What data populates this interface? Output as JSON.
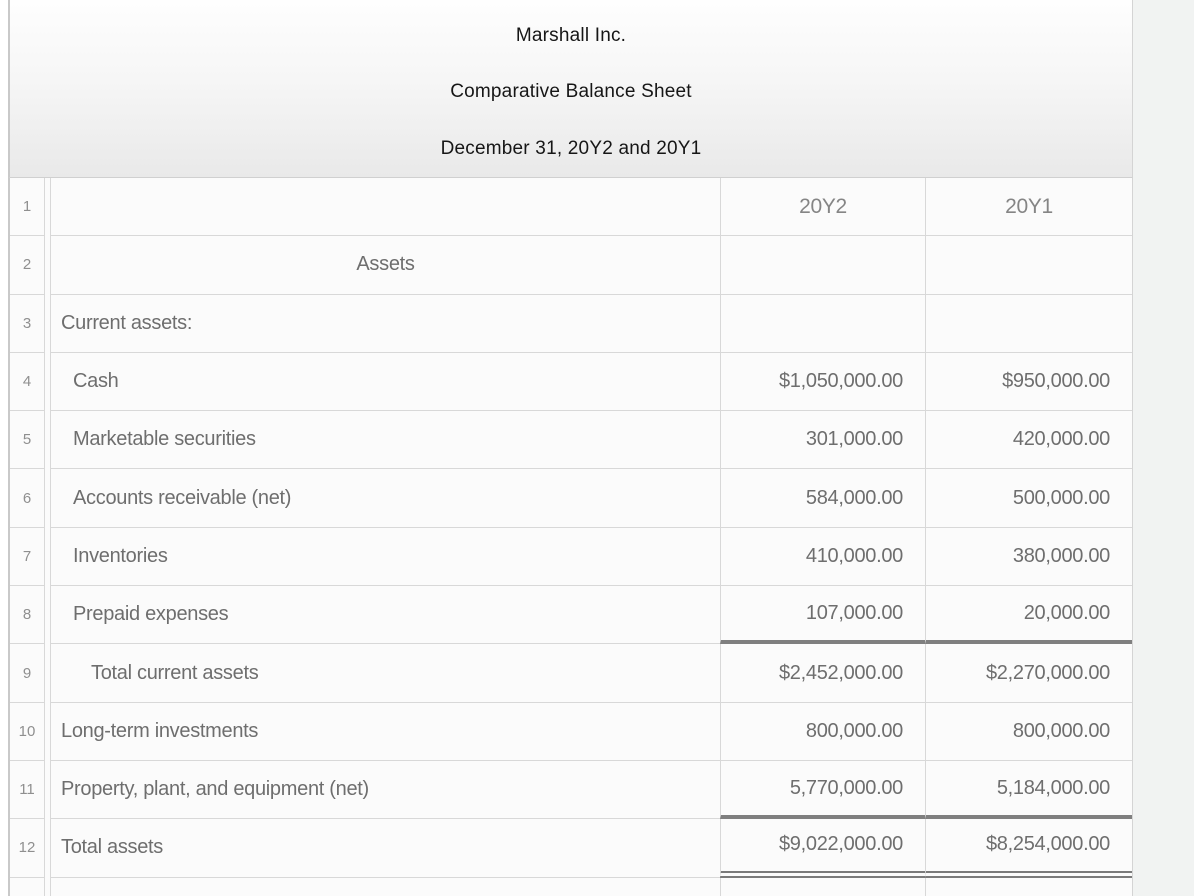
{
  "header": {
    "company": "Marshall Inc.",
    "statement": "Comparative Balance Sheet",
    "date_line": "December 31, 20Y2 and 20Y1"
  },
  "table": {
    "column_headers": {
      "year2": "20Y2",
      "year1": "20Y1"
    },
    "rows": [
      {
        "num": "1",
        "label": "",
        "align": "left",
        "indent": 0,
        "v2": "20Y2",
        "v1": "20Y1",
        "values": "header",
        "rule": "none"
      },
      {
        "num": "2",
        "label": "Assets",
        "align": "center",
        "indent": 0,
        "v2": "",
        "v1": "",
        "values": "data",
        "rule": "none"
      },
      {
        "num": "3",
        "label": "Current assets:",
        "align": "left",
        "indent": 0,
        "v2": "",
        "v1": "",
        "values": "data",
        "rule": "none"
      },
      {
        "num": "4",
        "label": "Cash",
        "align": "left",
        "indent": 1,
        "v2": "$1,050,000.00",
        "v1": "$950,000.00",
        "values": "data",
        "rule": "none"
      },
      {
        "num": "5",
        "label": "Marketable securities",
        "align": "left",
        "indent": 1,
        "v2": "301,000.00",
        "v1": "420,000.00",
        "values": "data",
        "rule": "none"
      },
      {
        "num": "6",
        "label": "Accounts receivable (net)",
        "align": "left",
        "indent": 1,
        "v2": "584,000.00",
        "v1": "500,000.00",
        "values": "data",
        "rule": "none"
      },
      {
        "num": "7",
        "label": "Inventories",
        "align": "left",
        "indent": 1,
        "v2": "410,000.00",
        "v1": "380,000.00",
        "values": "data",
        "rule": "none"
      },
      {
        "num": "8",
        "label": "Prepaid expenses",
        "align": "left",
        "indent": 1,
        "v2": "107,000.00",
        "v1": "20,000.00",
        "values": "data",
        "rule": "thick"
      },
      {
        "num": "9",
        "label": "Total current assets",
        "align": "left",
        "indent": 2,
        "v2": "$2,452,000.00",
        "v1": "$2,270,000.00",
        "values": "data",
        "rule": "none"
      },
      {
        "num": "10",
        "label": "Long-term investments",
        "align": "left",
        "indent": 0,
        "v2": "800,000.00",
        "v1": "800,000.00",
        "values": "data",
        "rule": "none"
      },
      {
        "num": "11",
        "label": "Property, plant, and equipment (net)",
        "align": "left",
        "indent": 0,
        "v2": "5,770,000.00",
        "v1": "5,184,000.00",
        "values": "data",
        "rule": "thick"
      },
      {
        "num": "12",
        "label": "Total assets",
        "align": "left",
        "indent": 0,
        "v2": "$9,022,000.00",
        "v1": "$8,254,000.00",
        "values": "data",
        "rule": "double"
      },
      {
        "num": "",
        "label": "",
        "align": "left",
        "indent": 0,
        "v2": "",
        "v1": "",
        "values": "data",
        "rule": "none"
      }
    ]
  },
  "colors": {
    "page_background_right": "#f1f3f2",
    "cell_background": "#fbfbfb",
    "grid_line": "#d8d8d8",
    "total_rule_dark": "#7f7f7f",
    "body_text": "#6e6e6e",
    "header_text": "#161616"
  }
}
